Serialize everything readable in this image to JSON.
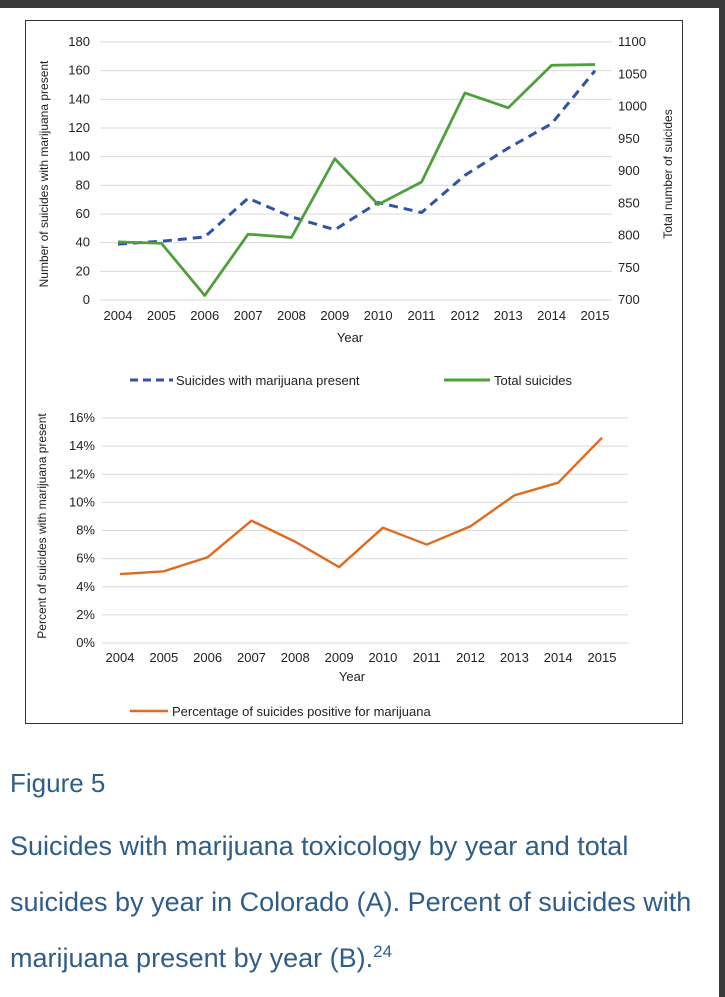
{
  "figure": {
    "label": "Figure 5",
    "caption": "Suicides with marijuana toxicology by year and total suicides by year in Colorado (A). Percent of suicides with marijuana present by year (B).",
    "reference": "24"
  },
  "chart_data": [
    {
      "type": "line",
      "x": [
        "2004",
        "2005",
        "2006",
        "2007",
        "2008",
        "2009",
        "2010",
        "2011",
        "2012",
        "2013",
        "2014",
        "2015"
      ],
      "xlabel": "Year",
      "ylabel": "Number of suicides with marijuana present",
      "y2label": "Total number of suicides",
      "ylim": [
        0,
        180
      ],
      "y2lim": [
        700,
        1100
      ],
      "yticks": [
        "0",
        "20",
        "40",
        "60",
        "80",
        "100",
        "120",
        "140",
        "160",
        "180"
      ],
      "y2ticks": [
        "700",
        "750",
        "800",
        "850",
        "900",
        "950",
        "1000",
        "1050",
        "1100"
      ],
      "grid": true,
      "legend_position": "bottom",
      "series": [
        {
          "name": "Suicides with marijuana present",
          "axis": "left",
          "style": "dashed",
          "color": "#2e54a3",
          "values": [
            39,
            41,
            44,
            71,
            58,
            49,
            68,
            61,
            87,
            106,
            123,
            160
          ]
        },
        {
          "name": "Total suicides",
          "axis": "right",
          "style": "solid",
          "color": "#4ea03c",
          "values": [
            790,
            788,
            707,
            802,
            797,
            919,
            848,
            883,
            1021,
            998,
            1064,
            1065
          ]
        }
      ]
    },
    {
      "type": "line",
      "x": [
        "2004",
        "2005",
        "2006",
        "2007",
        "2008",
        "2009",
        "2010",
        "2011",
        "2012",
        "2013",
        "2014",
        "2015"
      ],
      "xlabel": "Year",
      "ylabel": "Percent of suicides with marijuana present",
      "ylim": [
        0,
        16
      ],
      "yticks": [
        "0%",
        "2%",
        "4%",
        "6%",
        "8%",
        "10%",
        "12%",
        "14%",
        "16%"
      ],
      "grid": true,
      "legend_position": "bottom",
      "series": [
        {
          "name": "Percentage of suicides positive for marijuana",
          "axis": "left",
          "style": "solid",
          "color": "#e06a1e",
          "values": [
            4.9,
            5.1,
            6.1,
            8.7,
            7.2,
            5.4,
            8.2,
            7.0,
            8.3,
            10.5,
            11.4,
            14.6
          ]
        }
      ]
    }
  ]
}
